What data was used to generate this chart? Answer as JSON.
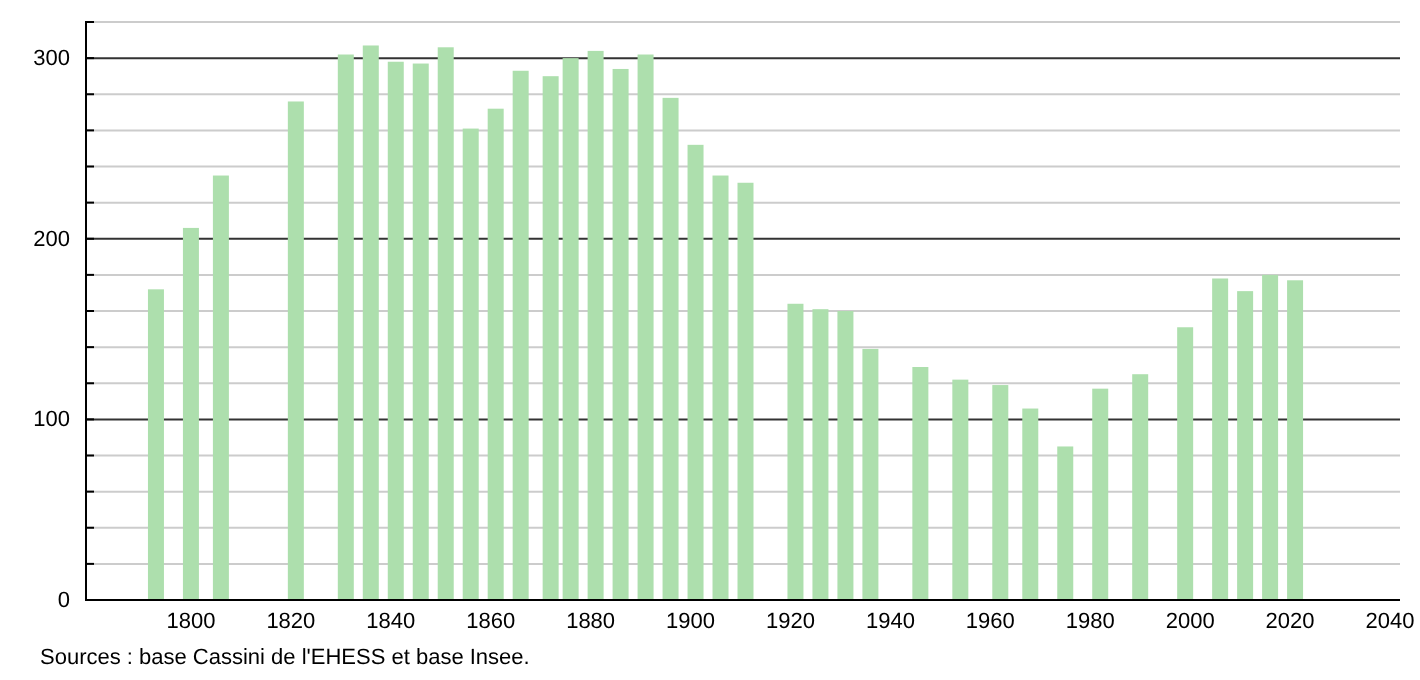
{
  "chart_data": {
    "type": "bar",
    "x": [
      1793,
      1800,
      1806,
      1821,
      1831,
      1836,
      1841,
      1846,
      1851,
      1856,
      1861,
      1866,
      1872,
      1876,
      1881,
      1886,
      1891,
      1896,
      1901,
      1906,
      1911,
      1921,
      1926,
      1931,
      1936,
      1946,
      1954,
      1962,
      1968,
      1975,
      1982,
      1990,
      1999,
      2006,
      2011,
      2016,
      2021
    ],
    "values": [
      172,
      206,
      235,
      276,
      302,
      307,
      298,
      297,
      306,
      261,
      272,
      293,
      290,
      300,
      304,
      294,
      302,
      278,
      252,
      235,
      231,
      164,
      161,
      160,
      139,
      129,
      122,
      119,
      106,
      85,
      117,
      125,
      151,
      178,
      171,
      180,
      177
    ],
    "color": "#addfad",
    "xlim": [
      1779,
      2042
    ],
    "xticks": [
      1800,
      1820,
      1840,
      1860,
      1880,
      1900,
      1920,
      1940,
      1960,
      1980,
      2000,
      2020,
      2040
    ],
    "ylim": [
      0,
      320
    ],
    "yticks": [
      0,
      {
        "value": 20,
        "label": null
      },
      {
        "value": 40,
        "label": null
      },
      {
        "value": 60,
        "label": null
      },
      {
        "value": 80,
        "label": null
      },
      100,
      {
        "value": 120,
        "label": null
      },
      {
        "value": 140,
        "label": null
      },
      {
        "value": 160,
        "label": null
      },
      {
        "value": 180,
        "label": null
      },
      200,
      {
        "value": 220,
        "label": null
      },
      {
        "value": 240,
        "label": null
      },
      {
        "value": 260,
        "label": null
      },
      {
        "value": 280,
        "label": null
      },
      300,
      {
        "value": 320,
        "label": null
      }
    ],
    "grid": "y",
    "annotations": [
      "Sources : base Cassini de l'EHESS et base Insee."
    ]
  }
}
